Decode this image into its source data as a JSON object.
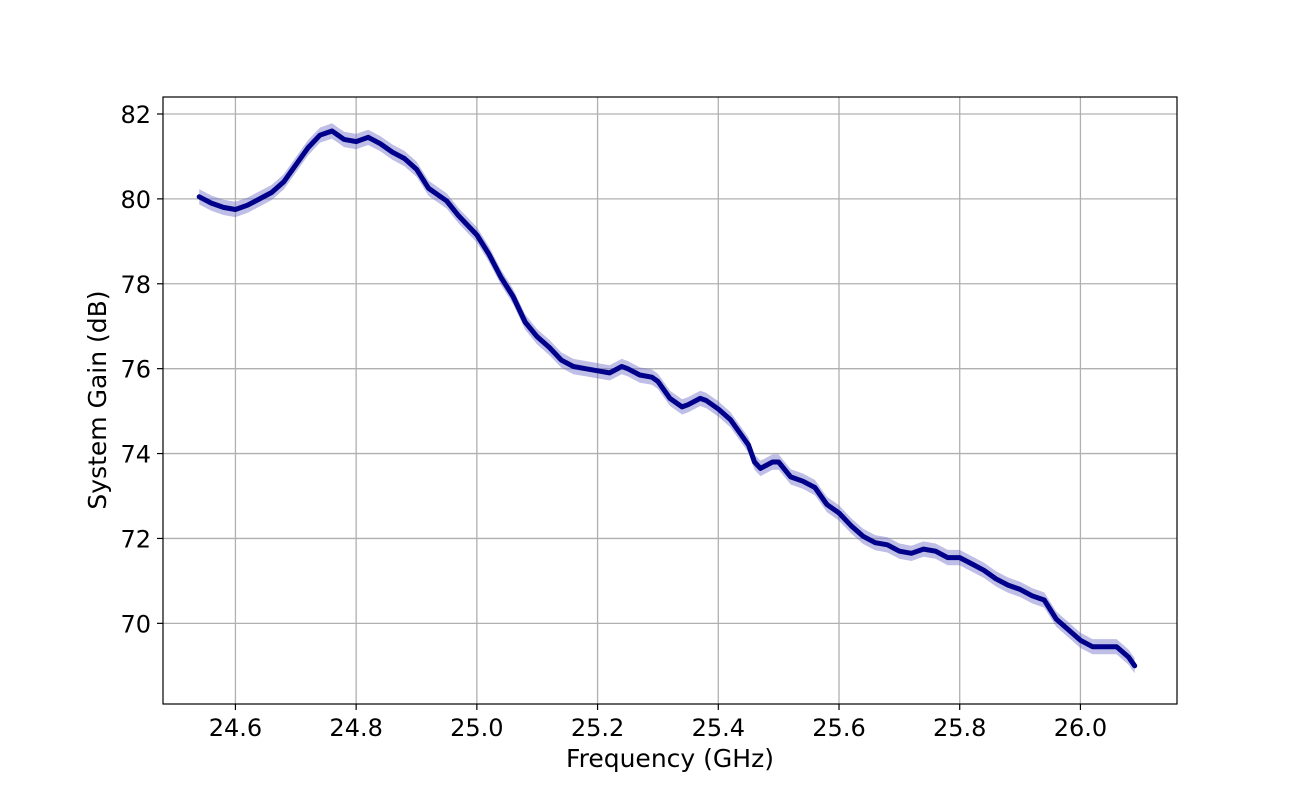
{
  "chart_data": {
    "type": "line",
    "title": "",
    "xlabel": "Frequency (GHz)",
    "ylabel": "System Gain (dB)",
    "xlim": [
      24.48,
      26.16
    ],
    "ylim": [
      68.1,
      82.4
    ],
    "xticks": [
      24.6,
      24.8,
      25.0,
      25.2,
      25.4,
      25.6,
      25.8,
      26.0
    ],
    "xtick_labels": [
      "24.6",
      "24.8",
      "25.0",
      "25.2",
      "25.4",
      "25.6",
      "25.8",
      "26.0"
    ],
    "yticks": [
      70,
      72,
      74,
      76,
      78,
      80,
      82
    ],
    "ytick_labels": [
      "70",
      "72",
      "74",
      "76",
      "78",
      "80",
      "82"
    ],
    "grid": true,
    "legend": "none",
    "line_color": "#00008b",
    "band_color": "#6f6fc8",
    "band_halfwidth_db": 0.18,
    "series": [
      {
        "x": [
          24.54,
          24.56,
          24.58,
          24.6,
          24.62,
          24.64,
          24.66,
          24.68,
          24.7,
          24.72,
          24.74,
          24.76,
          24.77,
          24.78,
          24.8,
          24.82,
          24.84,
          24.86,
          24.88,
          24.9,
          24.92,
          24.95,
          24.97,
          25.0,
          25.02,
          25.04,
          25.06,
          25.08,
          25.1,
          25.12,
          25.14,
          25.16,
          25.18,
          25.2,
          25.22,
          25.24,
          25.25,
          25.27,
          25.29,
          25.3,
          25.32,
          25.34,
          25.35,
          25.37,
          25.38,
          25.4,
          25.42,
          25.43,
          25.45,
          25.46,
          25.47,
          25.49,
          25.5,
          25.52,
          25.54,
          25.56,
          25.58,
          25.6,
          25.62,
          25.64,
          25.66,
          25.68,
          25.7,
          25.72,
          25.74,
          25.76,
          25.78,
          25.8,
          25.82,
          25.84,
          25.86,
          25.88,
          25.9,
          25.92,
          25.94,
          25.96,
          25.98,
          26.0,
          26.02,
          26.04,
          26.06,
          26.08,
          26.09
        ],
        "values": [
          80.05,
          79.9,
          79.8,
          79.75,
          79.85,
          80.0,
          80.15,
          80.4,
          80.8,
          81.2,
          81.5,
          81.6,
          81.5,
          81.4,
          81.35,
          81.45,
          81.3,
          81.1,
          80.95,
          80.7,
          80.25,
          79.95,
          79.6,
          79.15,
          78.7,
          78.15,
          77.7,
          77.1,
          76.75,
          76.5,
          76.2,
          76.05,
          76.0,
          75.95,
          75.9,
          76.05,
          76.0,
          75.85,
          75.8,
          75.7,
          75.3,
          75.1,
          75.15,
          75.3,
          75.25,
          75.05,
          74.8,
          74.6,
          74.2,
          73.8,
          73.65,
          73.8,
          73.8,
          73.45,
          73.35,
          73.2,
          72.8,
          72.6,
          72.3,
          72.05,
          71.9,
          71.85,
          71.7,
          71.65,
          71.75,
          71.7,
          71.55,
          71.55,
          71.4,
          71.25,
          71.05,
          70.9,
          70.8,
          70.65,
          70.55,
          70.1,
          69.85,
          69.6,
          69.45,
          69.45,
          69.45,
          69.2,
          69.0
        ]
      }
    ]
  }
}
